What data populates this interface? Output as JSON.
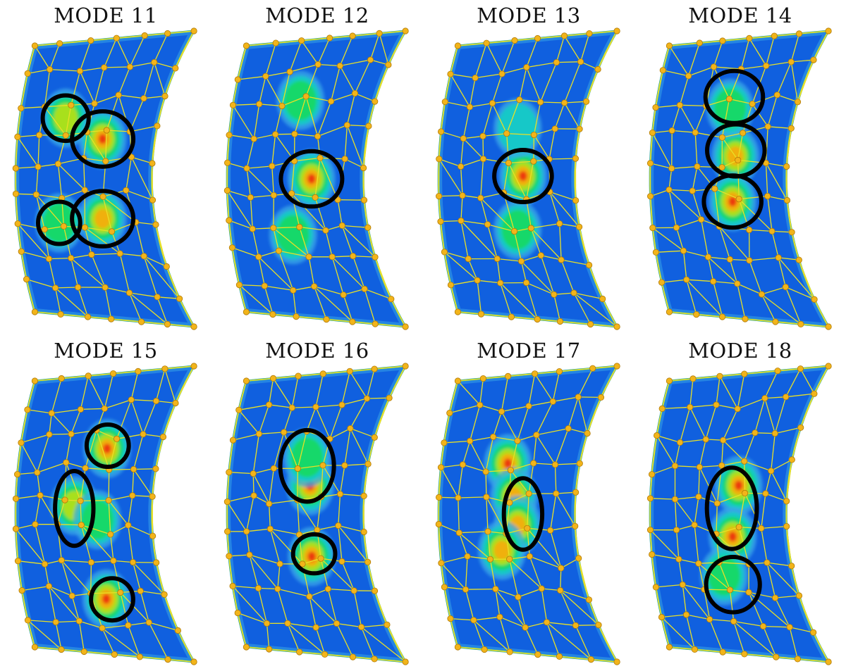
{
  "figure": {
    "panels": [
      {
        "title": "MODE 11",
        "hotspots": [
          [
            0.62,
            0.36,
            1.0
          ],
          [
            0.62,
            0.64,
            0.85
          ],
          [
            0.33,
            0.28,
            0.6
          ],
          [
            0.3,
            0.66,
            0.55
          ]
        ],
        "rings": [
          [
            0.33,
            0.28,
            0.12,
            0.14
          ],
          [
            0.62,
            0.36,
            0.16,
            0.17
          ],
          [
            0.62,
            0.64,
            0.16,
            0.17
          ],
          [
            0.3,
            0.66,
            0.11,
            0.13
          ]
        ]
      },
      {
        "title": "MODE 12",
        "hotspots": [
          [
            0.62,
            0.5,
            1.0
          ],
          [
            0.47,
            0.22,
            0.45
          ],
          [
            0.45,
            0.7,
            0.45
          ]
        ],
        "rings": [
          [
            0.62,
            0.5,
            0.16,
            0.17
          ]
        ]
      },
      {
        "title": "MODE 13",
        "hotspots": [
          [
            0.62,
            0.49,
            1.0
          ],
          [
            0.55,
            0.32,
            0.4
          ],
          [
            0.55,
            0.68,
            0.45
          ]
        ],
        "rings": [
          [
            0.62,
            0.49,
            0.15,
            0.16
          ]
        ]
      },
      {
        "title": "MODE 14",
        "hotspots": [
          [
            0.62,
            0.42,
            0.9
          ],
          [
            0.6,
            0.58,
            0.95
          ],
          [
            0.53,
            0.25,
            0.45
          ]
        ],
        "rings": [
          [
            0.54,
            0.21,
            0.15,
            0.16
          ],
          [
            0.62,
            0.4,
            0.15,
            0.16
          ],
          [
            0.6,
            0.58,
            0.15,
            0.16
          ]
        ]
      },
      {
        "title": "MODE 15",
        "hotspots": [
          [
            0.62,
            0.27,
            1.0
          ],
          [
            0.58,
            0.8,
            0.95
          ],
          [
            0.43,
            0.47,
            0.6
          ],
          [
            0.6,
            0.52,
            0.5
          ]
        ],
        "rings": [
          [
            0.62,
            0.26,
            0.11,
            0.13
          ],
          [
            0.43,
            0.48,
            0.1,
            0.23
          ],
          [
            0.62,
            0.8,
            0.11,
            0.13
          ]
        ]
      },
      {
        "title": "MODE 16",
        "hotspots": [
          [
            0.6,
            0.4,
            1.0
          ],
          [
            0.6,
            0.65,
            0.95
          ],
          [
            0.55,
            0.3,
            0.5
          ]
        ],
        "rings": [
          [
            0.56,
            0.33,
            0.14,
            0.22
          ],
          [
            0.62,
            0.64,
            0.11,
            0.12
          ]
        ]
      },
      {
        "title": "MODE 17",
        "hotspots": [
          [
            0.48,
            0.32,
            0.95
          ],
          [
            0.55,
            0.44,
            0.85
          ],
          [
            0.58,
            0.54,
            0.85
          ],
          [
            0.45,
            0.63,
            0.8
          ]
        ],
        "rings": [
          [
            0.62,
            0.5,
            0.1,
            0.22
          ]
        ]
      },
      {
        "title": "MODE 18",
        "hotspots": [
          [
            0.64,
            0.4,
            1.0
          ],
          [
            0.6,
            0.58,
            0.95
          ],
          [
            0.5,
            0.72,
            0.45
          ]
        ],
        "rings": [
          [
            0.6,
            0.48,
            0.13,
            0.25
          ],
          [
            0.55,
            0.75,
            0.14,
            0.17
          ]
        ]
      }
    ],
    "colors": {
      "background": "#ffffff",
      "surface": "#1060df",
      "surface_edge": "#1aa0a0",
      "level_1": "#3aa8e8",
      "level_2": "#19c8c8",
      "level_3": "#16d86a",
      "level_4": "#a8e01a",
      "level_5": "#f0b010",
      "level_6": "#ec3a10",
      "mesh_line": "#e8e026",
      "node": "#f2b41a",
      "ring": "#000000"
    }
  }
}
